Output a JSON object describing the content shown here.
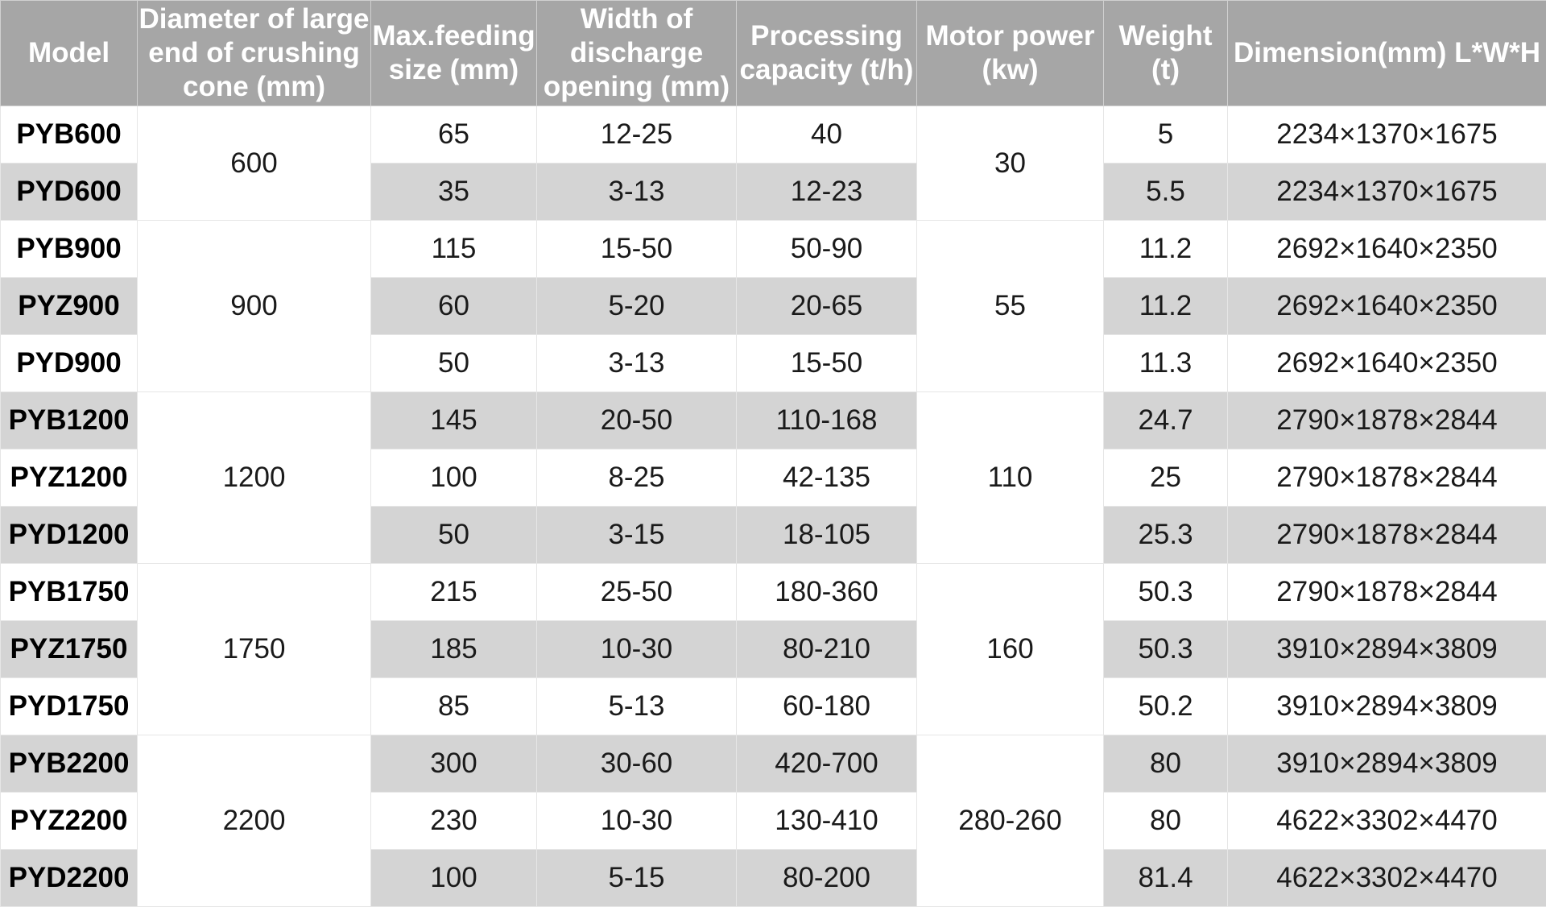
{
  "table": {
    "headers": [
      "Model",
      "Diameter of large end of crushing cone (mm)",
      "Max.feeding size (mm)",
      "Width of discharge opening (mm)",
      "Processing capacity (t/h)",
      "Motor power (kw)",
      "Weight (t)",
      "Dimension(mm) L*W*H"
    ],
    "groups": [
      {
        "diameter": "600",
        "motor_power": "30",
        "rows": [
          {
            "model": "PYB600",
            "feed": "65",
            "discharge": "12-25",
            "capacity": "40",
            "weight": "5",
            "dimension": "2234×1370×1675"
          },
          {
            "model": "PYD600",
            "feed": "35",
            "discharge": "3-13",
            "capacity": "12-23",
            "weight": "5.5",
            "dimension": "2234×1370×1675"
          }
        ]
      },
      {
        "diameter": "900",
        "motor_power": "55",
        "rows": [
          {
            "model": "PYB900",
            "feed": "115",
            "discharge": "15-50",
            "capacity": "50-90",
            "weight": "11.2",
            "dimension": "2692×1640×2350"
          },
          {
            "model": "PYZ900",
            "feed": "60",
            "discharge": "5-20",
            "capacity": "20-65",
            "weight": "11.2",
            "dimension": "2692×1640×2350"
          },
          {
            "model": "PYD900",
            "feed": "50",
            "discharge": "3-13",
            "capacity": "15-50",
            "weight": "11.3",
            "dimension": "2692×1640×2350"
          }
        ]
      },
      {
        "diameter": "1200",
        "motor_power": "110",
        "rows": [
          {
            "model": "PYB1200",
            "feed": "145",
            "discharge": "20-50",
            "capacity": "110-168",
            "weight": "24.7",
            "dimension": "2790×1878×2844"
          },
          {
            "model": "PYZ1200",
            "feed": "100",
            "discharge": "8-25",
            "capacity": "42-135",
            "weight": "25",
            "dimension": "2790×1878×2844"
          },
          {
            "model": "PYD1200",
            "feed": "50",
            "discharge": "3-15",
            "capacity": "18-105",
            "weight": "25.3",
            "dimension": "2790×1878×2844"
          }
        ]
      },
      {
        "diameter": "1750",
        "motor_power": "160",
        "rows": [
          {
            "model": "PYB1750",
            "feed": "215",
            "discharge": "25-50",
            "capacity": "180-360",
            "weight": "50.3",
            "dimension": "2790×1878×2844"
          },
          {
            "model": "PYZ1750",
            "feed": "185",
            "discharge": "10-30",
            "capacity": "80-210",
            "weight": "50.3",
            "dimension": "3910×2894×3809"
          },
          {
            "model": "PYD1750",
            "feed": "85",
            "discharge": "5-13",
            "capacity": "60-180",
            "weight": "50.2",
            "dimension": "3910×2894×3809"
          }
        ]
      },
      {
        "diameter": "2200",
        "motor_power": "280-260",
        "rows": [
          {
            "model": "PYB2200",
            "feed": "300",
            "discharge": "30-60",
            "capacity": "420-700",
            "weight": "80",
            "dimension": "3910×2894×3809"
          },
          {
            "model": "PYZ2200",
            "feed": "230",
            "discharge": "10-30",
            "capacity": "130-410",
            "weight": "80",
            "dimension": "4622×3302×4470"
          },
          {
            "model": "PYD2200",
            "feed": "100",
            "discharge": "5-15",
            "capacity": "80-200",
            "weight": "81.4",
            "dimension": "4622×3302×4470"
          }
        ]
      }
    ]
  }
}
